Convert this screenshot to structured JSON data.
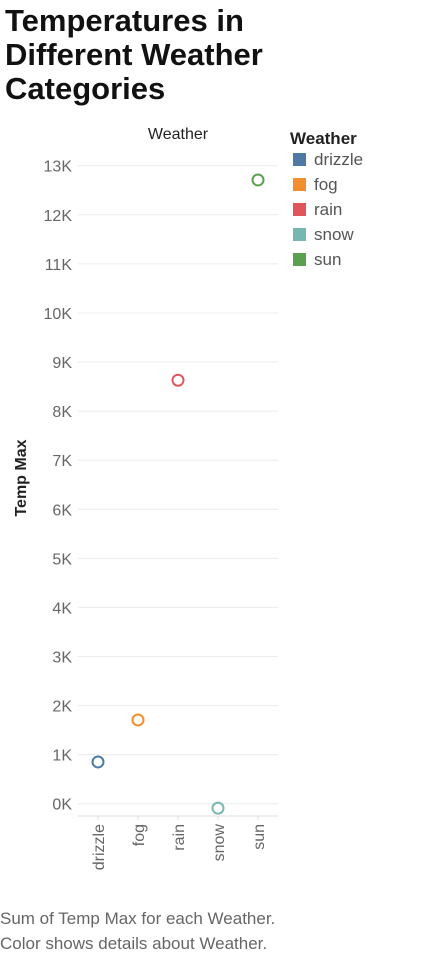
{
  "title": "Temperatures in Different Weather Categories",
  "caption": "Sum of Temp Max for each Weather.  Color shows details about Weather.",
  "chart_data": {
    "type": "scatter",
    "column_header": "Weather",
    "ylabel": "Temp Max",
    "ylim": [
      0,
      13000
    ],
    "ylim_display": [
      -250,
      13300
    ],
    "grid": true,
    "yticks": [
      0,
      1000,
      2000,
      3000,
      4000,
      5000,
      6000,
      7000,
      8000,
      9000,
      10000,
      11000,
      12000,
      13000
    ],
    "ytick_labels": [
      "0K",
      "1K",
      "2K",
      "3K",
      "4K",
      "5K",
      "6K",
      "7K",
      "8K",
      "9K",
      "10K",
      "11K",
      "12K",
      "13K"
    ],
    "categories": [
      "drizzle",
      "fog",
      "rain",
      "snow",
      "sun"
    ],
    "values": [
      851,
      1707,
      8629,
      -90,
      12710
    ],
    "legend": {
      "title": "Weather",
      "placement": "right",
      "items": [
        {
          "label": "drizzle",
          "color": "#4e79a7"
        },
        {
          "label": "fog",
          "color": "#f28e2b"
        },
        {
          "label": "rain",
          "color": "#e15759"
        },
        {
          "label": "snow",
          "color": "#76b7b2"
        },
        {
          "label": "sun",
          "color": "#59a14f"
        }
      ]
    }
  }
}
